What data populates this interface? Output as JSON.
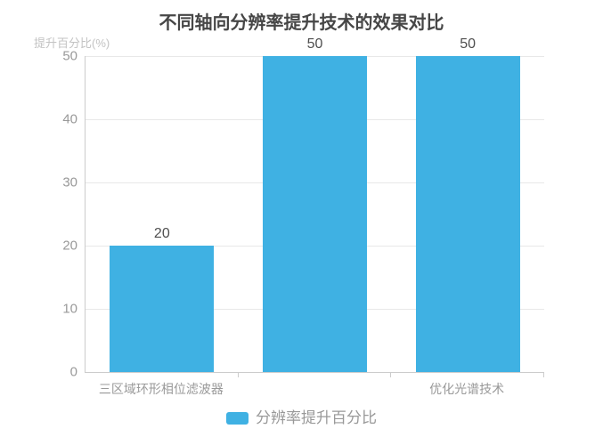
{
  "chart_data": {
    "type": "bar",
    "title": "不同轴向分辨率提升技术的效果对比",
    "y_axis_name": "提升百分比(%)",
    "categories": [
      "三区域环形相位滤波器",
      "",
      "优化光谱技术"
    ],
    "visible_x_labels": [
      {
        "index": 0,
        "label": "三区域环形相位滤波器"
      },
      {
        "index": 2,
        "label": "优化光谱技术"
      }
    ],
    "series": [
      {
        "name": "分辨率提升百分比",
        "values": [
          20,
          50,
          50
        ],
        "color": "#3fb1e3"
      }
    ],
    "data_labels": [
      20,
      50,
      50
    ],
    "y_ticks": [
      0,
      10,
      20,
      30,
      40,
      50
    ],
    "ylim": [
      0,
      50
    ],
    "grid": true,
    "legend_position": "bottom"
  },
  "legend": {
    "label": "分辨率提升百分比",
    "marker_color": "#3fb1e3"
  },
  "colors": {
    "bar": "#3fb1e3",
    "title_text": "#464646",
    "axis_line": "#cccccc",
    "grid_line": "#e8e8e8",
    "tick_text": "#999999",
    "axis_name_text": "#c3c3c3",
    "value_label_text": "#4f4f4f",
    "background": "#ffffff"
  }
}
